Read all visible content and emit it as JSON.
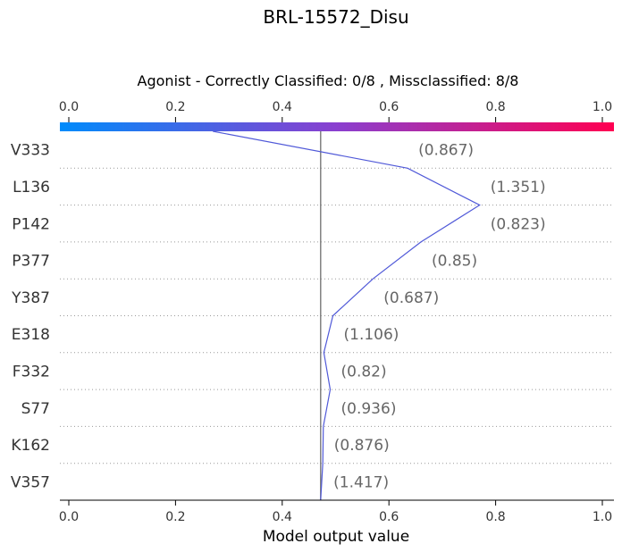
{
  "chart_data": {
    "type": "line",
    "title": "BRL-15572_Disu",
    "subtitle": "Agonist - Correctly Classified: 0/8 , Missclassified: 8/8",
    "xlabel": "Model output value",
    "xlim": [
      0.0,
      1.0
    ],
    "x_ticks": [
      "0.0",
      "0.2",
      "0.4",
      "0.6",
      "0.8",
      "1.0"
    ],
    "base_value": 0.472,
    "colorbar": {
      "from": "#008bfb",
      "to": "#ff0052"
    },
    "line_color": "#5059d8",
    "features": [
      {
        "label": "V333",
        "value": "(0.867)"
      },
      {
        "label": "L136",
        "value": "(1.351)"
      },
      {
        "label": "P142",
        "value": "(0.823)"
      },
      {
        "label": "P377",
        "value": "(0.85)"
      },
      {
        "label": "Y387",
        "value": "(0.687)"
      },
      {
        "label": "E318",
        "value": "(1.106)"
      },
      {
        "label": "F332",
        "value": "(0.82)"
      },
      {
        "label": "S77",
        "value": "(0.936)"
      },
      {
        "label": "K162",
        "value": "(0.876)"
      },
      {
        "label": "V357",
        "value": "(1.417)"
      }
    ],
    "path": [
      0.27,
      0.635,
      0.77,
      0.66,
      0.57,
      0.495,
      0.478,
      0.49,
      0.477,
      0.476,
      0.472
    ],
    "grid": "dotted horizontal row separators"
  }
}
